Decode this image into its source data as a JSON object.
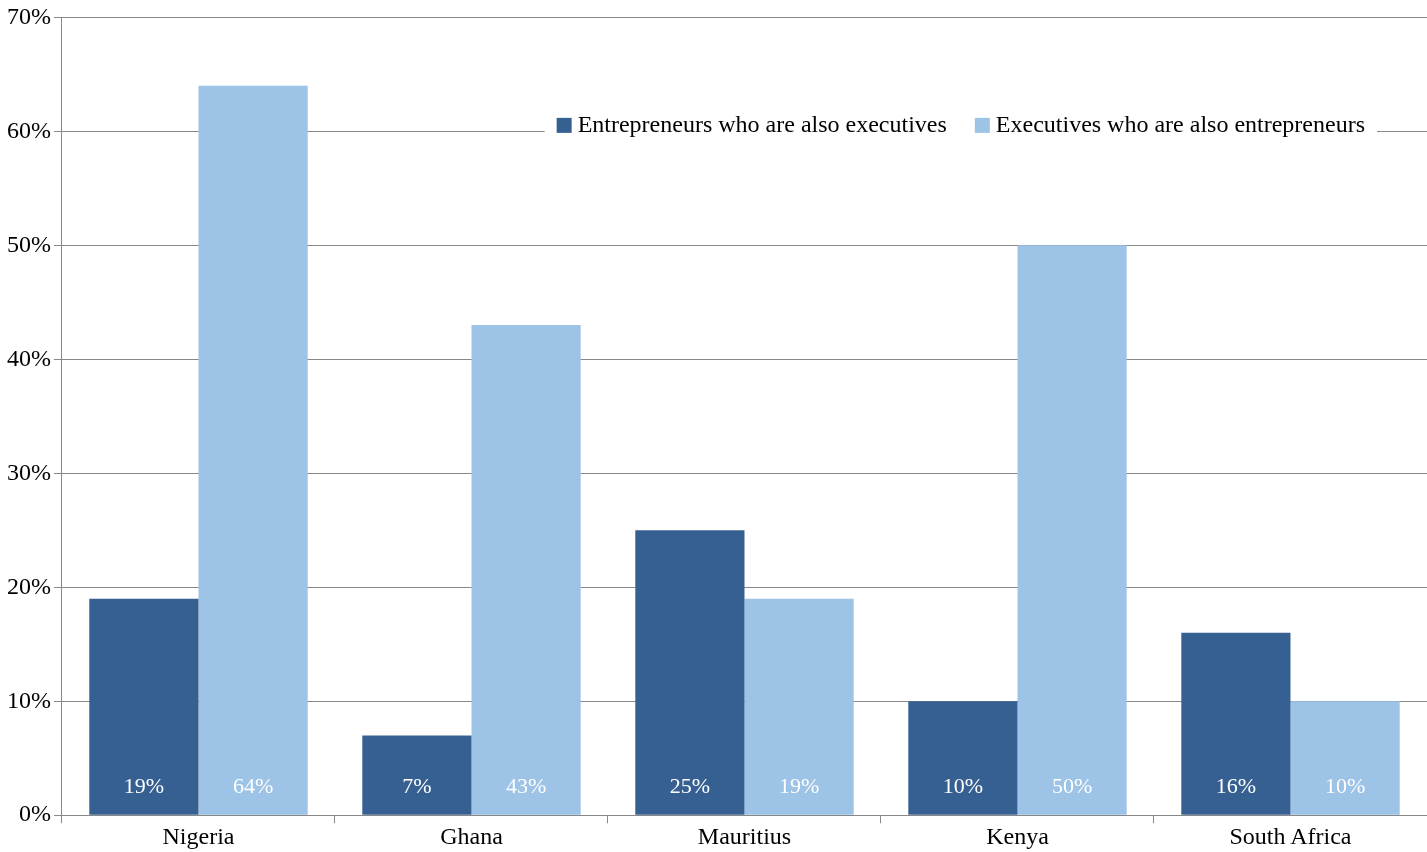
{
  "chart_data": {
    "type": "bar",
    "categories": [
      "Nigeria",
      "Ghana",
      "Mauritius",
      "Kenya",
      "South Africa"
    ],
    "series": [
      {
        "name": "Entrepreneurs who are also executives",
        "color": "#366092",
        "values": [
          19,
          7,
          25,
          10,
          16
        ],
        "value_labels": [
          "19%",
          "7%",
          "25%",
          "10%",
          "16%"
        ]
      },
      {
        "name": "Executives who are also entrepreneurs",
        "color": "#9dc3e6",
        "values": [
          64,
          43,
          19,
          50,
          10
        ],
        "value_labels": [
          "64%",
          "43%",
          "19%",
          "50%",
          "10%"
        ]
      }
    ],
    "ylim": [
      0,
      70
    ],
    "yticks": [
      {
        "value": 0,
        "label": "0%"
      },
      {
        "value": 10,
        "label": "10%"
      },
      {
        "value": 20,
        "label": "20%"
      },
      {
        "value": 30,
        "label": "30%"
      },
      {
        "value": 40,
        "label": "40%"
      },
      {
        "value": 50,
        "label": "50%"
      },
      {
        "value": 60,
        "label": "60%"
      },
      {
        "value": 70,
        "label": "70%"
      }
    ],
    "grid": "y",
    "legend": "top right"
  }
}
